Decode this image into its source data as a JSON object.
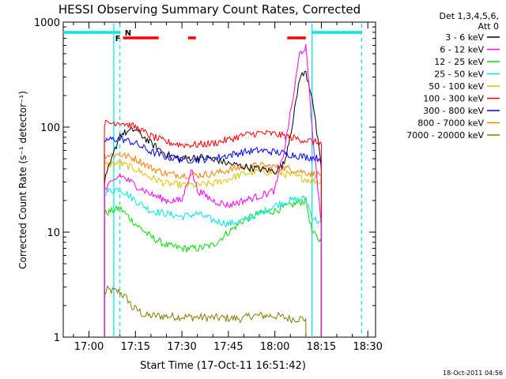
{
  "chart_data": {
    "type": "line",
    "title": "HESSI Observing Summary Count Rates, Corrected",
    "xlabel": "Start Time (17-Oct-11 16:51:42)",
    "ylabel": "Corrected Count Rate (s⁻¹ detector⁻¹)",
    "yscale": "log",
    "ylim": [
      1,
      1000
    ],
    "xlim": [
      "16:51:42",
      "18:32:30"
    ],
    "x_ticks": [
      "17:00",
      "17:15",
      "17:30",
      "17:45",
      "18:00",
      "18:15",
      "18:30"
    ],
    "y_ticks": [
      "1",
      "10",
      "100",
      "1000"
    ],
    "legend_header": [
      "Det 1,3,4,5,6,",
      "Att 0"
    ],
    "legend_position": "right",
    "footer_timestamp": "18-Oct-2011 04:56",
    "flags": [
      {
        "label": "N",
        "color": "#00e5e5",
        "segments": [
          [
            "16:51:42",
            "17:10:00"
          ],
          [
            "18:12:00",
            "18:28:00"
          ]
        ]
      },
      {
        "label": "F",
        "color": "#ff0000",
        "segments": [
          [
            "17:11:00",
            "17:22:30"
          ],
          [
            "17:32:00",
            "17:34:30"
          ],
          [
            "18:04:00",
            "18:10:00"
          ]
        ]
      }
    ],
    "vlines": [
      {
        "time": "17:10:00",
        "style": "dashed",
        "color": "#00e5e5"
      },
      {
        "time": "18:28:00",
        "style": "dashed",
        "color": "#00e5e5"
      },
      {
        "time": "17:08:00",
        "style": "solid",
        "color": "#00e5e5"
      },
      {
        "time": "18:12:00",
        "style": "solid",
        "color": "#00e5e5"
      }
    ],
    "series": [
      {
        "name": "3 - 6 keV",
        "color": "#000000",
        "x": [
          "17:05",
          "17:10",
          "17:15",
          "17:20",
          "17:25",
          "17:30",
          "17:35",
          "17:40",
          "17:45",
          "17:50",
          "17:55",
          "18:00",
          "18:03",
          "18:06",
          "18:08",
          "18:10",
          "18:12",
          "18:15"
        ],
        "values": [
          30,
          85,
          95,
          70,
          55,
          50,
          52,
          50,
          45,
          42,
          40,
          38,
          45,
          120,
          300,
          330,
          200,
          40
        ]
      },
      {
        "name": "6 - 12 keV",
        "color": "#ff00ff",
        "x": [
          "17:05",
          "17:10",
          "17:15",
          "17:20",
          "17:25",
          "17:30",
          "17:33",
          "17:35",
          "17:40",
          "17:45",
          "17:50",
          "17:55",
          "18:00",
          "18:03",
          "18:06",
          "18:08",
          "18:10",
          "18:12",
          "18:15"
        ],
        "values": [
          25,
          35,
          28,
          23,
          20,
          20,
          40,
          25,
          20,
          18,
          20,
          22,
          25,
          60,
          200,
          500,
          580,
          100,
          12
        ]
      },
      {
        "name": "12 - 25 keV",
        "color": "#00e000",
        "x": [
          "17:05",
          "17:10",
          "17:15",
          "17:20",
          "17:25",
          "17:30",
          "17:35",
          "17:40",
          "17:45",
          "17:50",
          "17:55",
          "18:00",
          "18:05",
          "18:10",
          "18:12",
          "18:15"
        ],
        "values": [
          15,
          17,
          12,
          9,
          7.5,
          7,
          7,
          7.5,
          10,
          13,
          15,
          16,
          18,
          20,
          10,
          8
        ]
      },
      {
        "name": "25 - 50 keV",
        "color": "#00e5e5",
        "x": [
          "17:05",
          "17:10",
          "17:15",
          "17:20",
          "17:25",
          "17:30",
          "17:35",
          "17:40",
          "17:45",
          "17:50",
          "17:55",
          "18:00",
          "18:05",
          "18:10",
          "18:12",
          "18:15"
        ],
        "values": [
          24,
          26,
          20,
          16,
          15,
          14,
          15,
          13,
          12,
          13,
          15,
          18,
          20,
          21,
          14,
          12
        ]
      },
      {
        "name": "50 - 100 keV",
        "color": "#e0c000",
        "x": [
          "17:05",
          "17:10",
          "17:15",
          "17:20",
          "17:25",
          "17:30",
          "17:35",
          "17:40",
          "17:45",
          "17:50",
          "17:55",
          "18:00",
          "18:05",
          "18:10",
          "18:15"
        ],
        "values": [
          44,
          45,
          40,
          33,
          29,
          28,
          28,
          29,
          32,
          36,
          38,
          37,
          35,
          32,
          30
        ]
      },
      {
        "name": "100 - 300 keV",
        "color": "#ff0000",
        "x": [
          "17:05",
          "17:10",
          "17:15",
          "17:20",
          "17:25",
          "17:30",
          "17:35",
          "17:40",
          "17:45",
          "17:50",
          "17:55",
          "18:00",
          "18:05",
          "18:10",
          "18:15"
        ],
        "values": [
          108,
          112,
          100,
          82,
          72,
          68,
          68,
          70,
          76,
          84,
          88,
          86,
          80,
          75,
          70
        ]
      },
      {
        "name": "300 - 800 keV",
        "color": "#0000ff",
        "x": [
          "17:05",
          "17:10",
          "17:15",
          "17:20",
          "17:25",
          "17:30",
          "17:35",
          "17:40",
          "17:45",
          "17:50",
          "17:55",
          "18:00",
          "18:05",
          "18:10",
          "18:15"
        ],
        "values": [
          75,
          78,
          70,
          58,
          52,
          49,
          49,
          50,
          54,
          58,
          60,
          58,
          55,
          52,
          50
        ]
      },
      {
        "name": "800 - 7000 keV",
        "color": "#ff8000",
        "x": [
          "17:05",
          "17:10",
          "17:15",
          "17:20",
          "17:25",
          "17:30",
          "17:35",
          "17:40",
          "17:45",
          "17:50",
          "17:55",
          "18:00",
          "18:05",
          "18:10",
          "18:15"
        ],
        "values": [
          54,
          55,
          50,
          41,
          36,
          35,
          35,
          36,
          39,
          42,
          43,
          42,
          40,
          37,
          35
        ]
      },
      {
        "name": "7000 - 20000 keV",
        "color": "#808000",
        "x": [
          "17:05",
          "17:06",
          "17:10",
          "17:11",
          "17:13",
          "17:14",
          "17:16",
          "17:18",
          "17:20",
          "17:50",
          "17:52",
          "18:00",
          "18:05",
          "18:10"
        ],
        "values": [
          2.6,
          2.8,
          2.7,
          2.5,
          2.2,
          1.9,
          1.8,
          1.6,
          1.6,
          1.5,
          1.6,
          1.6,
          1.5,
          1.5
        ]
      }
    ]
  }
}
